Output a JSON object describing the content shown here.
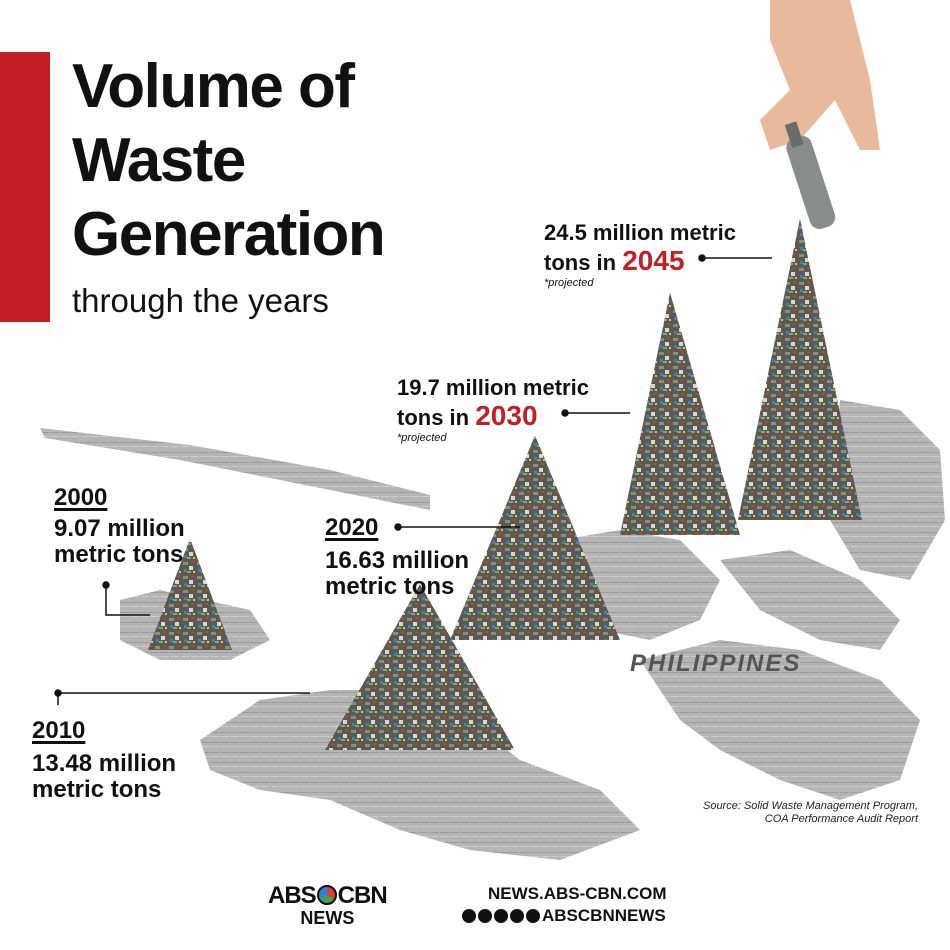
{
  "title": "Volume of Waste Generation",
  "subtitle": "through the years",
  "labels": {
    "y2000": {
      "year": "2000",
      "amount_line1": "9.07 million",
      "amount_line2": "metric tons"
    },
    "y2010": {
      "year": "2010",
      "amount_line1": "13.48 million",
      "amount_line2": "metric tons"
    },
    "y2020": {
      "year": "2020",
      "amount_line1": "16.63 million",
      "amount_line2": "metric tons"
    },
    "y2030": {
      "line1": "19.7 million metric",
      "prefix": "tons in",
      "year": "2030",
      "note": "*projected"
    },
    "y2045": {
      "line1": "24.5 million metric",
      "prefix": "tons in",
      "year": "2045",
      "note": "*projected"
    }
  },
  "map_label": "PHILIPPINES",
  "source": {
    "line1": "Source: Solid Waste Management Program,",
    "line2": "COA Performance Audit Report"
  },
  "brand": {
    "logo_left": "ABS",
    "logo_right": "CBN",
    "logo_sub": "NEWS",
    "site": "NEWS.ABS-CBN.COM",
    "handle": "ABSCBNNEWS"
  },
  "colors": {
    "accent": "#c41f26",
    "map_gray": "#9e9e9e"
  },
  "icons": [
    "facebook-icon",
    "twitter-icon",
    "instagram-icon",
    "youtube-icon",
    "tiktok-icon"
  ],
  "chart_data": {
    "type": "bar",
    "categories": [
      "2000",
      "2010",
      "2020",
      "2030",
      "2045"
    ],
    "values": [
      9.07,
      13.48,
      16.63,
      19.7,
      24.5
    ],
    "projected": [
      false,
      false,
      false,
      true,
      true
    ]
  }
}
